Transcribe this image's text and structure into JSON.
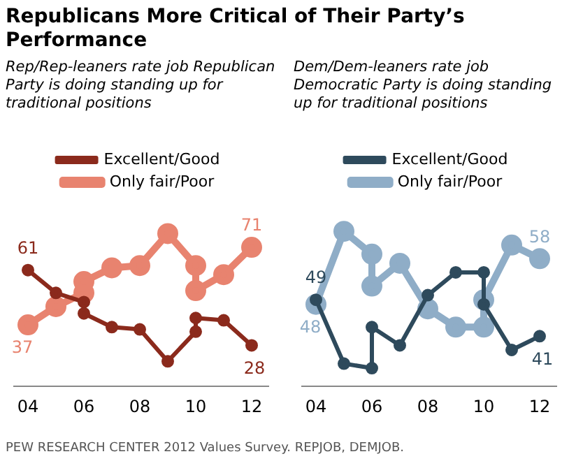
{
  "chart_data": [
    {
      "type": "line",
      "title": "Republicans More Critical of Their Party’s Performance",
      "subtitle": "Rep/Rep-leaners rate job Republican Party is doing standing up for traditional positions",
      "annotations": [
        "PEW RESEARCH CENTER 2012 Values Survey. REPJOB, DEMJOB."
      ],
      "xlim": [
        2003.5,
        2012.6
      ],
      "xticks": [
        {
          "value": 2004,
          "label": "04"
        },
        {
          "value": 2006,
          "label": "06"
        },
        {
          "value": 2008,
          "label": "08"
        },
        {
          "value": 2010,
          "label": "10"
        },
        {
          "value": 2012,
          "label": "12"
        }
      ],
      "tick_labels": "x",
      "legend": "top",
      "grid": false,
      "marker": "circle",
      "series": [
        {
          "name": "Excellent/Good",
          "color": "#8b2a1c",
          "x": [
            2004,
            2005,
            2006,
            2006,
            2007,
            2008,
            2009,
            2010,
            2010,
            2011,
            2012
          ],
          "values": [
            61,
            51,
            47,
            42,
            36,
            35,
            21,
            34,
            40,
            39,
            28
          ],
          "value_labels": [
            "61",
            null,
            null,
            null,
            null,
            null,
            null,
            null,
            null,
            null,
            "28"
          ]
        },
        {
          "name": "Only fair/Poor",
          "color": "#e8836f",
          "x": [
            2004,
            2005,
            2006,
            2006,
            2007,
            2008,
            2009,
            2010,
            2010,
            2011,
            2012
          ],
          "values": [
            37,
            45,
            51,
            56,
            62,
            63,
            77,
            63,
            52,
            59,
            71
          ],
          "value_labels": [
            "37",
            null,
            null,
            null,
            null,
            null,
            null,
            null,
            null,
            null,
            "71"
          ]
        }
      ]
    },
    {
      "type": "line",
      "subtitle": "Dem/Dem-leaners rate job Democratic Party is doing standing up for traditional positions",
      "xlim": [
        2003.5,
        2012.6
      ],
      "xticks": [
        {
          "value": 2004,
          "label": "04"
        },
        {
          "value": 2006,
          "label": "06"
        },
        {
          "value": 2008,
          "label": "08"
        },
        {
          "value": 2010,
          "label": "10"
        },
        {
          "value": 2012,
          "label": "12"
        }
      ],
      "tick_labels": "x",
      "legend": "top",
      "grid": false,
      "marker": "circle",
      "series": [
        {
          "name": "Excellent/Good",
          "color": "#2e4a5c",
          "x": [
            2004,
            2005,
            2006,
            2006,
            2007,
            2008,
            2009,
            2010,
            2010,
            2011,
            2012
          ],
          "values": [
            49,
            35,
            34,
            43,
            39,
            50,
            55,
            55,
            48,
            38,
            41
          ],
          "value_labels": [
            "49",
            null,
            null,
            null,
            null,
            null,
            null,
            null,
            null,
            null,
            "41"
          ]
        },
        {
          "name": "Only fair/Poor",
          "color": "#8fadc7",
          "x": [
            2004,
            2005,
            2006,
            2006,
            2007,
            2008,
            2009,
            2010,
            2010,
            2011,
            2012
          ],
          "values": [
            48,
            64,
            59,
            52,
            57,
            47,
            43,
            43,
            49,
            61,
            58
          ],
          "value_labels": [
            "48",
            null,
            null,
            null,
            null,
            null,
            null,
            null,
            null,
            null,
            "58"
          ]
        }
      ]
    }
  ]
}
